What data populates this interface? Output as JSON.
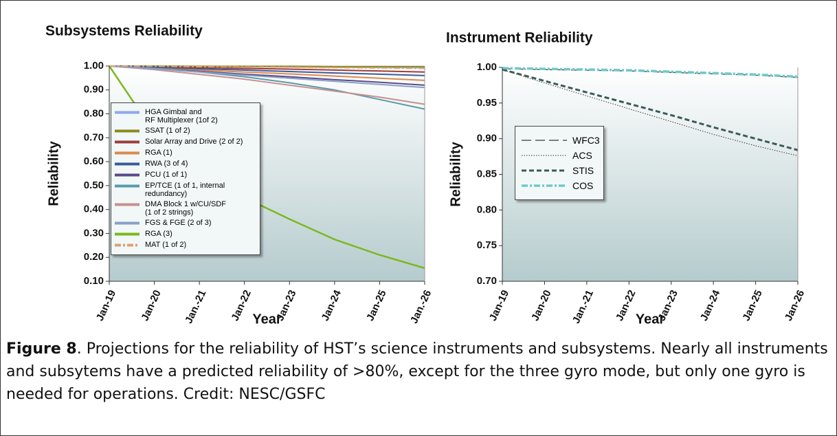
{
  "chart_data": [
    {
      "type": "line",
      "title": "Subsystems Reliability",
      "xlabel": "Year",
      "ylabel": "Reliability",
      "categories": [
        "Jan-19",
        "Jan-20",
        "Jan.-21",
        "Jan-22",
        "Jan-23",
        "Jan-24",
        "Jan-25",
        "Jan.-26"
      ],
      "ylim": [
        0.1,
        1.0
      ],
      "yticks": [
        {
          "value": 0.1,
          "label": "0.10"
        },
        {
          "value": 0.2,
          "label": "0.20"
        },
        {
          "value": 0.3,
          "label": "0.30"
        },
        {
          "value": 0.4,
          "label": "0.40"
        },
        {
          "value": 0.5,
          "label": "0.50"
        },
        {
          "value": 0.6,
          "label": "0.60"
        },
        {
          "value": 0.7,
          "label": "0.70"
        },
        {
          "value": 0.8,
          "label": "0.80"
        },
        {
          "value": 0.9,
          "label": "0.90"
        },
        {
          "value": 1.0,
          "label": "1.00"
        }
      ],
      "legend": "lower left",
      "series": [
        {
          "name": "HGA Gimbal and\nRF Multiplexer (1of 2)",
          "color": "#8fa8f0",
          "linewidth": 2,
          "values": [
            1,
            0.999,
            0.998,
            0.997,
            0.996,
            0.995,
            0.994,
            0.993
          ]
        },
        {
          "name": "SSAT (1 of 2)",
          "color": "#8b8b1a",
          "linewidth": 2,
          "values": [
            1,
            1,
            0.999,
            0.999,
            0.999,
            0.998,
            0.998,
            0.998
          ]
        },
        {
          "name": "Solar Array and Drive (2 of 2)",
          "color": "#a03a3a",
          "linewidth": 2,
          "values": [
            1,
            0.997,
            0.994,
            0.99,
            0.987,
            0.983,
            0.979,
            0.975
          ]
        },
        {
          "name": "RGA (1)",
          "color": "#d98a4a",
          "linewidth": 2,
          "values": [
            1,
            0.992,
            0.984,
            0.975,
            0.967,
            0.958,
            0.949,
            0.94
          ]
        },
        {
          "name": "RWA (3 of 4)",
          "color": "#3a5a9a",
          "linewidth": 2,
          "values": [
            1,
            0.995,
            0.989,
            0.983,
            0.977,
            0.971,
            0.966,
            0.96
          ]
        },
        {
          "name": "PCU (1 of 1)",
          "color": "#5a4a8a",
          "linewidth": 2,
          "values": [
            1,
            0.989,
            0.978,
            0.966,
            0.955,
            0.943,
            0.932,
            0.92
          ]
        },
        {
          "name": "EP/TCE (1 of 1, internal redundancy)",
          "color": "#5a9aaa",
          "linewidth": 2,
          "values": [
            1,
            0.99,
            0.975,
            0.955,
            0.93,
            0.9,
            0.86,
            0.82
          ]
        },
        {
          "name": "DMA Block 1 w/CU/SDF\n(1 of 2 strings)",
          "color": "#c89090",
          "linewidth": 2,
          "values": [
            1,
            0.985,
            0.965,
            0.945,
            0.92,
            0.895,
            0.87,
            0.84
          ]
        },
        {
          "name": "FGS & FGE (2 of 3)",
          "color": "#8aa0c8",
          "linewidth": 2,
          "values": [
            1,
            0.988,
            0.975,
            0.962,
            0.949,
            0.936,
            0.923,
            0.91
          ]
        },
        {
          "name": "RGA (3)",
          "color": "#7ab81e",
          "linewidth": 2.5,
          "values": [
            1,
            0.72,
            0.55,
            0.45,
            0.36,
            0.275,
            0.21,
            0.155
          ]
        },
        {
          "name": "MAT (1 of 2)",
          "color": "#e0a070",
          "linewidth": 2,
          "dash": "dash-dot",
          "values": [
            1,
            0.999,
            0.997,
            0.996,
            0.995,
            0.993,
            0.992,
            0.99
          ]
        }
      ]
    },
    {
      "type": "line",
      "title": "Instrument Reliability",
      "xlabel": "Year",
      "ylabel": "Reliability",
      "categories": [
        "Jan-19",
        "Jan-20",
        "Jan.-21",
        "Jan-22",
        "Jan-23",
        "Jan-24",
        "Jan-25",
        "Jan-26"
      ],
      "ylim": [
        0.7,
        1.0
      ],
      "yticks": [
        {
          "value": 0.7,
          "label": "0.70"
        },
        {
          "value": 0.75,
          "label": "0.75"
        },
        {
          "value": 0.8,
          "label": "0.80"
        },
        {
          "value": 0.85,
          "label": "0.85"
        },
        {
          "value": 0.9,
          "label": "0.90"
        },
        {
          "value": 0.95,
          "label": "0.95"
        },
        {
          "value": 1.0,
          "label": "1.00"
        }
      ],
      "legend": "center left",
      "series": [
        {
          "name": "WFC3",
          "color": "#555555",
          "linewidth": 1.5,
          "dash": "long-dash",
          "values": [
            0.998,
            0.997,
            0.996,
            0.995,
            0.993,
            0.991,
            0.989,
            0.986
          ]
        },
        {
          "name": "ACS",
          "color": "#333333",
          "linewidth": 1,
          "dash": "dotted",
          "values": [
            0.997,
            0.978,
            0.96,
            0.942,
            0.924,
            0.906,
            0.89,
            0.876
          ]
        },
        {
          "name": "STIS",
          "color": "#3d5a5a",
          "linewidth": 3,
          "dash": "dashed",
          "values": [
            0.997,
            0.981,
            0.965,
            0.949,
            0.933,
            0.916,
            0.9,
            0.884
          ]
        },
        {
          "name": "COS",
          "color": "#6ccaca",
          "linewidth": 3.5,
          "dash": "dash-dot",
          "values": [
            0.999,
            0.998,
            0.997,
            0.996,
            0.994,
            0.992,
            0.99,
            0.987
          ]
        }
      ]
    }
  ],
  "caption": {
    "label": "Figure 8",
    "text": ". Projections for the reliability of HST’s science instruments and subsystems.  Nearly all instruments and subsytems have a predicted reliability of >80%, except for the three gyro mode, but only one gyro is needed for operations. Credit: NESC/GSFC"
  }
}
